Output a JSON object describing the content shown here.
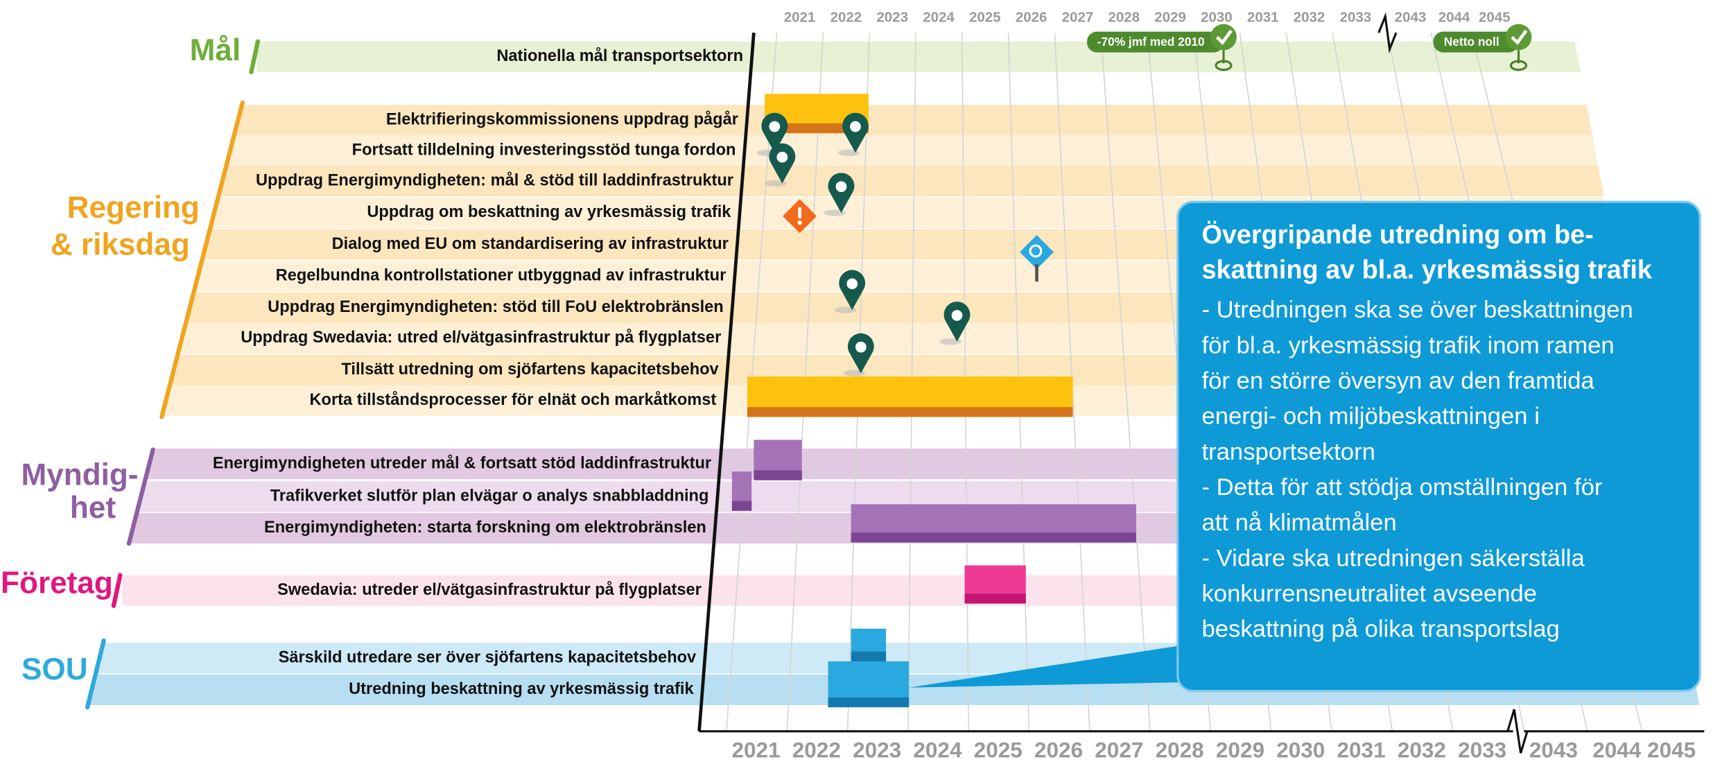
{
  "years_top": [
    {
      "label": "2021"
    },
    {
      "label": "2022"
    },
    {
      "label": "2023"
    },
    {
      "label": "2024"
    },
    {
      "label": "2025"
    },
    {
      "label": "2026"
    },
    {
      "label": "2027"
    },
    {
      "label": "2028"
    },
    {
      "label": "2029"
    },
    {
      "label": "2030",
      "highlight": true
    },
    {
      "label": "2031"
    },
    {
      "label": "2032"
    },
    {
      "label": "2033"
    },
    {
      "label": "2043"
    },
    {
      "label": "2044"
    },
    {
      "label": "2045",
      "highlight": true
    }
  ],
  "years_bottom": [
    {
      "label": "2021"
    },
    {
      "label": "2022"
    },
    {
      "label": "2023"
    },
    {
      "label": "2024"
    },
    {
      "label": "2025"
    },
    {
      "label": "2026"
    },
    {
      "label": "2027"
    },
    {
      "label": "2028"
    },
    {
      "label": "2029"
    },
    {
      "label": "2030",
      "highlight": true
    },
    {
      "label": "2031"
    },
    {
      "label": "2032"
    },
    {
      "label": "2033"
    },
    {
      "label": "2043"
    },
    {
      "label": "2044"
    },
    {
      "label": "2045",
      "highlight": true
    }
  ],
  "groups": [
    {
      "label": [
        "Mål"
      ],
      "color": "#6fae3a",
      "rows": [
        "Nationella mål transportsektorn"
      ]
    },
    {
      "label": [
        "Regering",
        "& riksdag"
      ],
      "color": "#f0a41f",
      "rows": [
        "Elektrifieringskommissionens uppdrag pågår",
        "Fortsatt tilldelning investeringsstöd tunga fordon",
        "Uppdrag Energimyndigheten: mål & stöd till laddinfrastruktur",
        "Uppdrag om beskattning av yrkesmässig trafik",
        "Dialog med EU om standardisering av infrastruktur",
        "Regelbundna kontrollstationer utbyggnad av infrastruktur",
        "Uppdrag Energimyndigheten: stöd till FoU elektrobränslen",
        "Uppdrag Swedavia: utred el/vätgasinfrastruktur på flygplatser",
        "Tillsätt utredning om sjöfartens kapacitetsbehov",
        "Korta tillståndsprocesser för elnät och markåtkomst"
      ]
    },
    {
      "label": [
        "Myndig-",
        "het"
      ],
      "color": "#8e5ea2",
      "rows": [
        "Energimyndigheten utreder mål & fortsatt stöd laddinfrastruktur",
        "Trafikverket slutför plan elvägar o analys snabbladdning",
        "Energimyndigheten: starta forskning om elektrobränslen"
      ]
    },
    {
      "label": [
        "Företag"
      ],
      "color": "#e0177f",
      "rows": [
        "Swedavia: utreder el/vätgasinfrastruktur på flygplatser"
      ]
    },
    {
      "label": [
        "SOU"
      ],
      "color": "#2fa9dc",
      "rows": [
        "Särskild utredare ser över sjöfartens kapacitetsbehov",
        "Utredning beskattning av yrkesmässig trafik"
      ]
    }
  ],
  "milestones": [
    "-70% jmf med 2010",
    "Netto noll"
  ],
  "callout": {
    "title": [
      "Övergripande utredning om be-",
      "skattning av bl.a. yrkesmässig trafik"
    ],
    "lines": [
      "- Utredningen ska se över beskattningen",
      "för bl.a. yrkesmässig trafik inom ramen",
      "för en större översyn av den framtida",
      "energi- och miljöbeskattningen i",
      "transportsektorn",
      "- Detta för att stödja omställningen för",
      "att nå klimatmålen",
      "- Vidare ska utredningen säkerställa",
      "konkurrensneutralitet avseende",
      "beskattning på olika transportslag"
    ]
  }
}
